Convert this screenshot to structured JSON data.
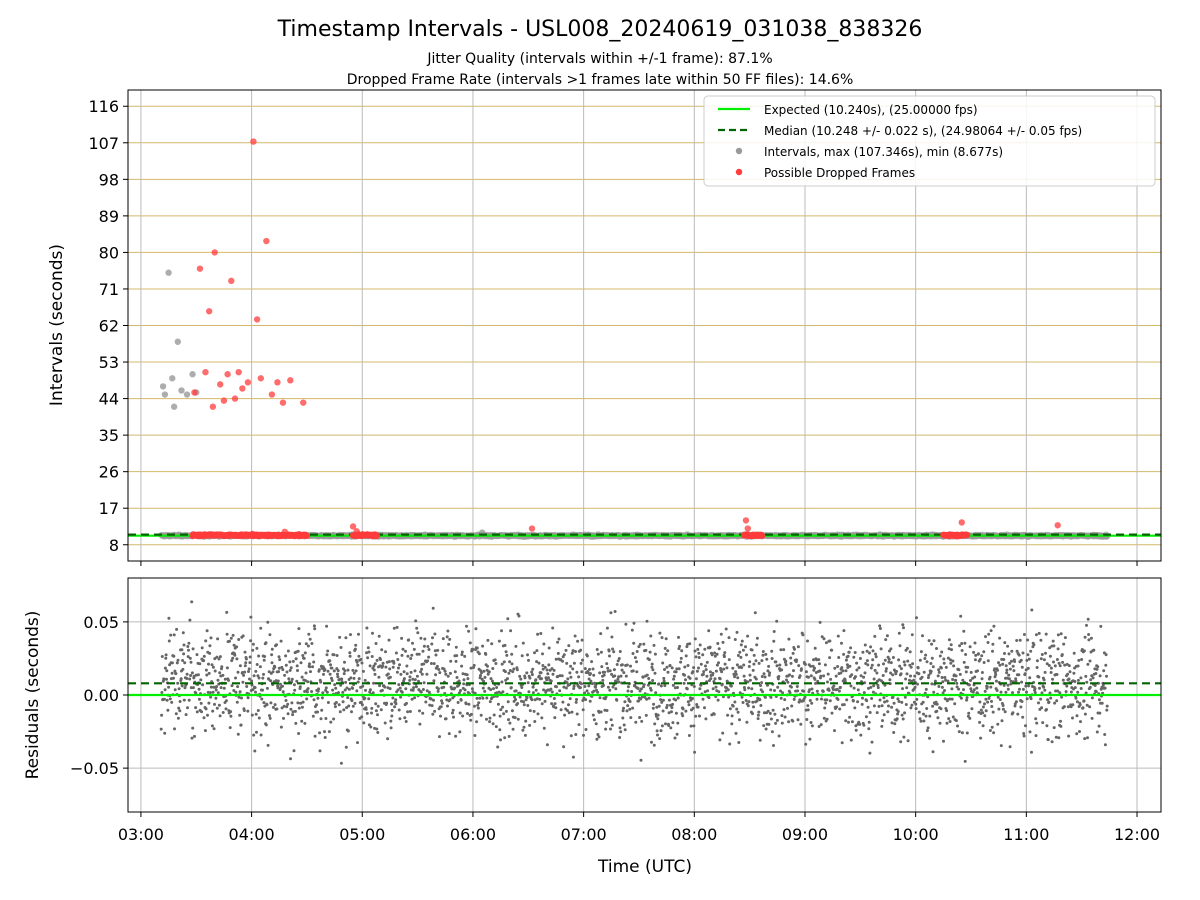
{
  "figure": {
    "title": "Timestamp Intervals - USL008_20240619_031038_838326",
    "subtitle_1": "Jitter Quality (intervals within +/-1 frame): 87.1%",
    "subtitle_2": "Dropped Frame Rate (intervals >1 frames late within 50 FF files): 14.6%"
  },
  "colors": {
    "expected": "#00ee00",
    "median": "#006400",
    "intervals": "#999999",
    "dropped": "#ff3b3b",
    "residuals": "#666666",
    "hgrid_top": "#d4b86a",
    "grid": "#bbbbbb"
  },
  "chart_data": [
    {
      "type": "scatter",
      "ylabel": "Intervals (seconds)",
      "xlim": [
        "02:53",
        "12:13"
      ],
      "ylim": [
        4,
        120
      ],
      "x_ticks": [
        "03:00",
        "04:00",
        "05:00",
        "06:00",
        "07:00",
        "08:00",
        "09:00",
        "10:00",
        "11:00",
        "12:00"
      ],
      "y_ticks": [
        8,
        17,
        26,
        35,
        44,
        53,
        62,
        71,
        80,
        89,
        98,
        107,
        116
      ],
      "grid": true,
      "legend_position": "top-right",
      "legend": [
        "Expected (10.240s), (25.00000 fps)",
        "Median (10.248 +/- 0.022 s), (24.98064 +/- 0.05 fps)",
        "Intervals, max (107.346s), min (8.677s)",
        "Possible Dropped Frames"
      ],
      "expected_line": 10.24,
      "median_line": 10.248,
      "intervals": {
        "x_range": [
          "03:11",
          "11:44"
        ],
        "baseline": 10.24,
        "scatter_pts": [
          [
            "03:12",
            47.0
          ],
          [
            "03:13",
            45.0
          ],
          [
            "03:15",
            75.0
          ],
          [
            "03:17",
            49.0
          ],
          [
            "03:18",
            42.0
          ],
          [
            "03:20",
            58.0
          ],
          [
            "03:22",
            46.0
          ],
          [
            "03:25",
            45.0
          ],
          [
            "03:28",
            50.0
          ],
          [
            "03:30",
            45.5
          ]
        ],
        "spikes": [
          [
            "06:05",
            11.0
          ]
        ]
      },
      "dropped_frames": {
        "dense_ranges": [
          [
            "03:28",
            "04:30"
          ],
          [
            "04:55",
            "05:08"
          ],
          [
            "08:27",
            "08:37"
          ],
          [
            "10:15",
            "10:28"
          ]
        ],
        "points": [
          [
            "03:29",
            45.5
          ],
          [
            "03:32",
            76.0
          ],
          [
            "03:35",
            50.5
          ],
          [
            "03:37",
            65.5
          ],
          [
            "03:39",
            42.0
          ],
          [
            "03:40",
            80.0
          ],
          [
            "03:43",
            47.5
          ],
          [
            "03:45",
            43.5
          ],
          [
            "03:47",
            50.0
          ],
          [
            "03:49",
            73.0
          ],
          [
            "03:51",
            44.0
          ],
          [
            "03:53",
            50.5
          ],
          [
            "03:55",
            46.5
          ],
          [
            "03:58",
            48.0
          ],
          [
            "04:01",
            107.3
          ],
          [
            "04:03",
            63.5
          ],
          [
            "04:05",
            49.0
          ],
          [
            "04:08",
            82.8
          ],
          [
            "04:11",
            45.0
          ],
          [
            "04:14",
            48.0
          ],
          [
            "04:17",
            43.0
          ],
          [
            "04:21",
            48.5
          ],
          [
            "04:28",
            43.0
          ],
          [
            "04:18",
            11.2
          ],
          [
            "04:55",
            12.5
          ],
          [
            "04:57",
            11.3
          ],
          [
            "06:32",
            12.0
          ],
          [
            "08:28",
            14.0
          ],
          [
            "08:29",
            12.0
          ],
          [
            "10:25",
            13.5
          ],
          [
            "11:17",
            12.8
          ]
        ]
      }
    },
    {
      "type": "scatter",
      "xlabel": "Time (UTC)",
      "ylabel": "Residuals (seconds)",
      "xlim": [
        "02:53",
        "12:13"
      ],
      "ylim": [
        -0.08,
        0.08
      ],
      "y_ticks": [
        0.05,
        0.0,
        -0.05
      ],
      "y_tick_labels": [
        "0.05",
        "0.00",
        "−0.05"
      ],
      "grid": true,
      "zero_line": 0.0,
      "median_offset": 0.008,
      "points_x_range": [
        "03:11",
        "11:44"
      ],
      "points_spread": 0.028
    }
  ]
}
